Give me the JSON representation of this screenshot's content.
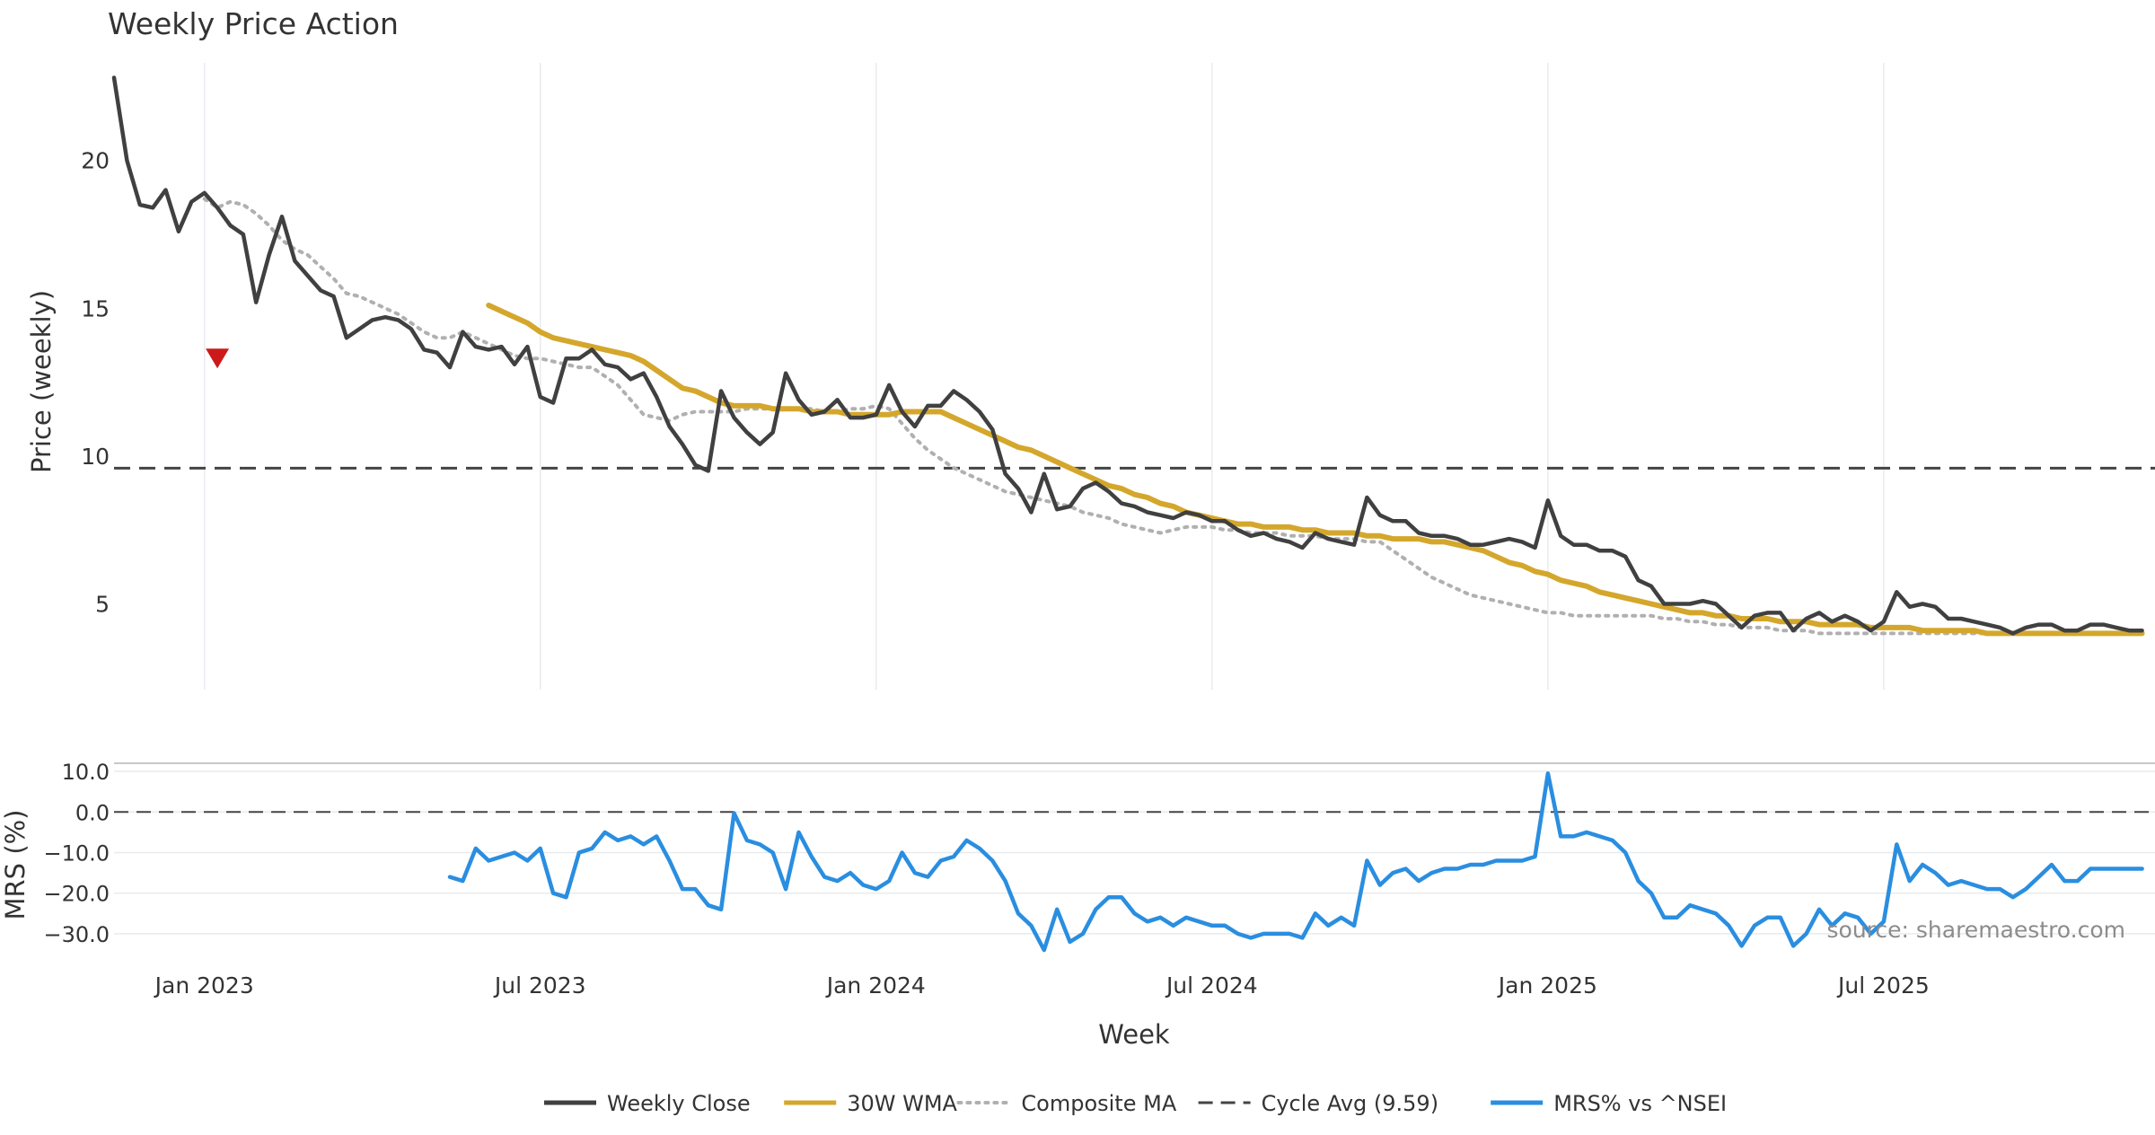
{
  "chart_data": {
    "type": "line",
    "title": "Weekly Price Action",
    "source": "source: sharemaestro.com",
    "xlabel": "Week",
    "x_ticks": [
      {
        "label": "Jan 2023",
        "x": 0
      },
      {
        "label": "Jul 2023",
        "x": 26
      },
      {
        "label": "Jan 2024",
        "x": 52
      },
      {
        "label": "Jul 2024",
        "x": 78
      },
      {
        "label": "Jan 2025",
        "x": 104
      },
      {
        "label": "Jul 2025",
        "x": 130
      }
    ],
    "xlim": [
      -7,
      151
    ],
    "price_panel": {
      "ylabel": "Price (weekly)",
      "ylim": [
        2.1,
        23.3
      ],
      "y_ticks": [
        5,
        10,
        15,
        20
      ],
      "cycle_avg": 9.59,
      "sell_signal": {
        "x": 1,
        "y": 13.3,
        "marker": "down-triangle"
      },
      "series": [
        {
          "name": "Weekly Close",
          "color": "#404040",
          "style": "solid",
          "x_start": -7,
          "values": [
            22.8,
            20.0,
            18.5,
            18.4,
            19.0,
            17.6,
            18.6,
            18.9,
            18.4,
            17.8,
            17.5,
            15.2,
            16.8,
            18.1,
            16.6,
            16.1,
            15.6,
            15.4,
            14.0,
            14.3,
            14.6,
            14.7,
            14.6,
            14.3,
            13.6,
            13.5,
            13.0,
            14.2,
            13.7,
            13.6,
            13.7,
            13.1,
            13.7,
            12.0,
            11.8,
            13.3,
            13.3,
            13.6,
            13.1,
            13.0,
            12.6,
            12.8,
            12.0,
            11.0,
            10.4,
            9.7,
            9.5,
            12.2,
            11.3,
            10.8,
            10.4,
            10.8,
            12.8,
            11.9,
            11.4,
            11.5,
            11.9,
            11.3,
            11.3,
            11.4,
            12.4,
            11.5,
            11.0,
            11.7,
            11.7,
            12.2,
            11.9,
            11.5,
            10.9,
            9.4,
            8.9,
            8.1,
            9.4,
            8.2,
            8.3,
            8.9,
            9.1,
            8.8,
            8.4,
            8.3,
            8.1,
            8.0,
            7.9,
            8.1,
            8.0,
            7.8,
            7.8,
            7.5,
            7.3,
            7.4,
            7.2,
            7.1,
            6.9,
            7.4,
            7.2,
            7.1,
            7.0,
            8.6,
            8.0,
            7.8,
            7.8,
            7.4,
            7.3,
            7.3,
            7.2,
            7.0,
            7.0,
            7.1,
            7.2,
            7.1,
            6.9,
            8.5,
            7.3,
            7.0,
            7.0,
            6.8,
            6.8,
            6.6,
            5.8,
            5.6,
            5.0,
            5.0,
            5.0,
            5.1,
            5.0,
            4.6,
            4.2,
            4.6,
            4.7,
            4.7,
            4.1,
            4.5,
            4.7,
            4.4,
            4.6,
            4.4,
            4.1,
            4.4,
            5.4,
            4.9,
            5.0,
            4.9,
            4.5,
            4.5,
            4.4,
            4.3,
            4.2,
            4.0,
            4.2,
            4.3,
            4.3,
            4.1,
            4.1,
            4.3,
            4.3,
            4.2,
            4.1,
            4.1
          ]
        },
        {
          "name": "30W WMA",
          "color": "#d4a72c",
          "style": "solid",
          "x_start": 22,
          "values": [
            15.1,
            14.9,
            14.7,
            14.5,
            14.2,
            14.0,
            13.9,
            13.8,
            13.7,
            13.6,
            13.5,
            13.4,
            13.2,
            12.9,
            12.6,
            12.3,
            12.2,
            12.0,
            11.8,
            11.7,
            11.7,
            11.7,
            11.6,
            11.6,
            11.6,
            11.5,
            11.5,
            11.5,
            11.4,
            11.4,
            11.4,
            11.4,
            11.5,
            11.5,
            11.5,
            11.5,
            11.3,
            11.1,
            10.9,
            10.7,
            10.5,
            10.3,
            10.2,
            10.0,
            9.8,
            9.6,
            9.4,
            9.2,
            9.0,
            8.9,
            8.7,
            8.6,
            8.4,
            8.3,
            8.1,
            8.0,
            7.9,
            7.8,
            7.7,
            7.7,
            7.6,
            7.6,
            7.6,
            7.5,
            7.5,
            7.4,
            7.4,
            7.4,
            7.3,
            7.3,
            7.2,
            7.2,
            7.2,
            7.1,
            7.1,
            7.0,
            6.9,
            6.8,
            6.6,
            6.4,
            6.3,
            6.1,
            6.0,
            5.8,
            5.7,
            5.6,
            5.4,
            5.3,
            5.2,
            5.1,
            5.0,
            4.9,
            4.8,
            4.7,
            4.7,
            4.6,
            4.6,
            4.5,
            4.5,
            4.5,
            4.4,
            4.4,
            4.4,
            4.3,
            4.3,
            4.3,
            4.3,
            4.2,
            4.2,
            4.2,
            4.2,
            4.1,
            4.1,
            4.1,
            4.1,
            4.1,
            4.0,
            4.0,
            4.0,
            4.0,
            4.0,
            4.0,
            4.0,
            4.0,
            4.0,
            4.0,
            4.0,
            4.0,
            4.0
          ]
        },
        {
          "name": "Composite MA",
          "color": "#b0b0b0",
          "style": "dotted",
          "x_start": 0,
          "values": [
            18.7,
            18.4,
            18.6,
            18.5,
            18.2,
            17.8,
            17.3,
            17.0,
            16.8,
            16.4,
            16.0,
            15.5,
            15.4,
            15.2,
            15.0,
            14.8,
            14.5,
            14.2,
            14.0,
            14.0,
            14.2,
            14.0,
            13.8,
            13.6,
            13.4,
            13.3,
            13.3,
            13.2,
            13.1,
            13.0,
            13.0,
            12.7,
            12.4,
            11.9,
            11.4,
            11.3,
            11.2,
            11.4,
            11.5,
            11.5,
            11.5,
            11.5,
            11.6,
            11.6,
            11.6,
            11.6,
            11.6,
            11.6,
            11.5,
            11.5,
            11.6,
            11.6,
            11.7,
            11.6,
            11.1,
            10.6,
            10.2,
            9.9,
            9.6,
            9.4,
            9.2,
            9.0,
            8.8,
            8.7,
            8.6,
            8.5,
            8.4,
            8.3,
            8.1,
            8.0,
            7.9,
            7.7,
            7.6,
            7.5,
            7.4,
            7.5,
            7.6,
            7.6,
            7.6,
            7.5,
            7.5,
            7.4,
            7.4,
            7.4,
            7.3,
            7.3,
            7.3,
            7.2,
            7.2,
            7.2,
            7.1,
            7.1,
            6.8,
            6.5,
            6.2,
            5.9,
            5.7,
            5.5,
            5.3,
            5.2,
            5.1,
            5.0,
            4.9,
            4.8,
            4.7,
            4.7,
            4.6,
            4.6,
            4.6,
            4.6,
            4.6,
            4.6,
            4.6,
            4.5,
            4.5,
            4.4,
            4.4,
            4.3,
            4.3,
            4.2,
            4.2,
            4.2,
            4.1,
            4.1,
            4.1,
            4.0,
            4.0,
            4.0,
            4.0,
            4.0,
            4.0,
            4.0,
            4.0,
            4.0,
            4.0,
            4.0,
            4.0,
            4.0,
            4.0,
            4.0,
            4.0,
            4.0,
            4.0,
            4.0,
            4.0,
            4.0,
            4.0,
            4.0,
            4.0,
            4.0,
            4.0
          ]
        }
      ]
    },
    "mrs_panel": {
      "ylabel": "MRS (%)",
      "ylim": [
        -36,
        12
      ],
      "y_ticks": [
        10.0,
        0.0,
        -10.0,
        -20.0,
        -30.0
      ],
      "y_tick_labels": [
        "10.0",
        "0.0",
        "−10.0",
        "−20.0",
        "−30.0"
      ],
      "zero_line": 0,
      "series": [
        {
          "name": "MRS% vs ^NSEI",
          "color": "#2a8ee0",
          "style": "solid",
          "x_start": 19,
          "values": [
            -16,
            -17,
            -9,
            -12,
            -11,
            -10,
            -12,
            -9,
            -20,
            -21,
            -10,
            -9,
            -5,
            -7,
            -6,
            -8,
            -6,
            -12,
            -19,
            -19,
            -23,
            -24,
            -0.3,
            -7,
            -8,
            -10,
            -19,
            -5,
            -11,
            -16,
            -17,
            -15,
            -18,
            -19,
            -17,
            -10,
            -15,
            -16,
            -12,
            -11,
            -7,
            -9,
            -12,
            -17,
            -25,
            -28,
            -34,
            -24,
            -32,
            -30,
            -24,
            -21,
            -21,
            -25,
            -27,
            -26,
            -28,
            -26,
            -27,
            -28,
            -28,
            -30,
            -31,
            -30,
            -30,
            -30,
            -31,
            -25,
            -28,
            -26,
            -28,
            -12,
            -18,
            -15,
            -14,
            -17,
            -15,
            -14,
            -14,
            -13,
            -13,
            -12,
            -12,
            -12,
            -11,
            9.5,
            -6,
            -6,
            -5,
            -6,
            -7,
            -10,
            -17,
            -20,
            -26,
            -26,
            -23,
            -24,
            -25,
            -28,
            -33,
            -28,
            -26,
            -26,
            -33,
            -30,
            -24,
            -28,
            -25,
            -26,
            -30,
            -27,
            -8,
            -17,
            -13,
            -15,
            -18,
            -17,
            -18,
            -19,
            -19,
            -21,
            -19,
            -16,
            -13,
            -17,
            -17,
            -14,
            -14,
            -14,
            -14,
            -14
          ]
        }
      ]
    },
    "legend": {
      "position": "bottom-center",
      "entries": [
        {
          "label": "Weekly Close",
          "color": "#404040",
          "style": "solid"
        },
        {
          "label": "30W WMA",
          "color": "#d4a72c",
          "style": "solid"
        },
        {
          "label": "Composite MA",
          "color": "#b0b0b0",
          "style": "dotted"
        },
        {
          "label": "Cycle Avg (9.59)",
          "color": "#444444",
          "style": "dashed"
        },
        {
          "label": "MRS% vs ^NSEI",
          "color": "#2a8ee0",
          "style": "solid"
        }
      ]
    }
  }
}
